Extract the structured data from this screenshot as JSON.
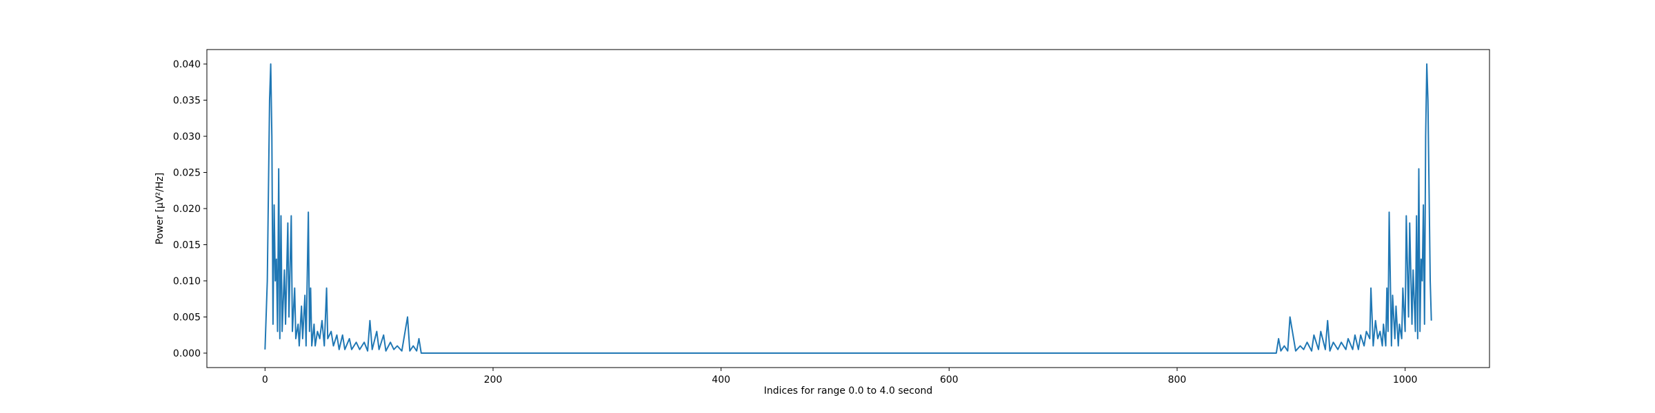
{
  "chart_data": {
    "type": "line",
    "xlabel": "Indices for range 0.0 to 4.0 second",
    "ylabel": "Power [μV²/Hz]",
    "color": "#1f77b4",
    "x": [
      0,
      2,
      4,
      5,
      6,
      7,
      8,
      9,
      10,
      11,
      12,
      13,
      14,
      15,
      17,
      18,
      20,
      21,
      23,
      24,
      26,
      27,
      29,
      30,
      32,
      33,
      35,
      36,
      38,
      39,
      40,
      41,
      43,
      44,
      46,
      48,
      50,
      52,
      54,
      55,
      58,
      60,
      63,
      65,
      68,
      70,
      74,
      76,
      80,
      83,
      87,
      90,
      92,
      94,
      98,
      100,
      104,
      106,
      110,
      113,
      116,
      120,
      125,
      127,
      130,
      133,
      135,
      137,
      140,
      884,
      887,
      889,
      891,
      894,
      897,
      899,
      904,
      908,
      911,
      914,
      918,
      920,
      924,
      926,
      930,
      932,
      934,
      937,
      941,
      944,
      948,
      950,
      954,
      956,
      959,
      961,
      964,
      966,
      969,
      970,
      972,
      974,
      976,
      978,
      980,
      981,
      983,
      984,
      985,
      986,
      988,
      989,
      991,
      992,
      994,
      995,
      997,
      998,
      1000,
      1001,
      1003,
      1004,
      1006,
      1007,
      1009,
      1010,
      1011,
      1012,
      1013,
      1014,
      1015,
      1016,
      1017,
      1018,
      1019,
      1020,
      1022,
      1023
    ],
    "values": [
      0.0005,
      0.01,
      0.035,
      0.04,
      0.03,
      0.004,
      0.0205,
      0.01,
      0.013,
      0.003,
      0.0255,
      0.002,
      0.019,
      0.003,
      0.0115,
      0.004,
      0.018,
      0.005,
      0.019,
      0.003,
      0.009,
      0.002,
      0.004,
      0.001,
      0.0065,
      0.002,
      0.008,
      0.001,
      0.0195,
      0.003,
      0.009,
      0.001,
      0.004,
      0.001,
      0.003,
      0.002,
      0.0045,
      0.001,
      0.009,
      0.002,
      0.003,
      0.001,
      0.0025,
      0.0005,
      0.0025,
      0.0005,
      0.002,
      0.0005,
      0.0015,
      0.0005,
      0.0015,
      0.0003,
      0.0045,
      0.0005,
      0.003,
      0.0005,
      0.0025,
      0.0003,
      0.0015,
      0.0005,
      0.001,
      0.0003,
      0.005,
      0.0003,
      0.001,
      0.0003,
      0.002,
      0,
      0,
      0,
      0,
      0.002,
      0.0003,
      0.001,
      0.0003,
      0.005,
      0.0003,
      0.001,
      0.0005,
      0.0015,
      0.0003,
      0.0025,
      0.0005,
      0.003,
      0.0005,
      0.0045,
      0.0003,
      0.0015,
      0.0005,
      0.0015,
      0.0005,
      0.002,
      0.0005,
      0.0025,
      0.0005,
      0.0025,
      0.001,
      0.003,
      0.002,
      0.009,
      0.001,
      0.0045,
      0.002,
      0.003,
      0.001,
      0.004,
      0.001,
      0.009,
      0.003,
      0.0195,
      0.001,
      0.008,
      0.002,
      0.0065,
      0.001,
      0.004,
      0.002,
      0.009,
      0.003,
      0.019,
      0.005,
      0.018,
      0.004,
      0.0115,
      0.003,
      0.019,
      0.002,
      0.0255,
      0.003,
      0.013,
      0.01,
      0.0205,
      0.004,
      0.03,
      0.04,
      0.035,
      0.01,
      0.0045
    ],
    "xlim": [
      -51,
      1074
    ],
    "xticks": [
      0,
      200,
      400,
      600,
      800,
      1000
    ],
    "ylim": [
      -0.002,
      0.042
    ],
    "yticks": [
      {
        "value": 0,
        "label": "0.000"
      },
      {
        "value": 0.005,
        "label": "0.005"
      },
      {
        "value": 0.01,
        "label": "0.010"
      },
      {
        "value": 0.015,
        "label": "0.015"
      },
      {
        "value": 0.02,
        "label": "0.020"
      },
      {
        "value": 0.025,
        "label": "0.025"
      },
      {
        "value": 0.03,
        "label": "0.030"
      },
      {
        "value": 0.035,
        "label": "0.035"
      },
      {
        "value": 0.04,
        "label": "0.040"
      }
    ],
    "grid": false
  }
}
